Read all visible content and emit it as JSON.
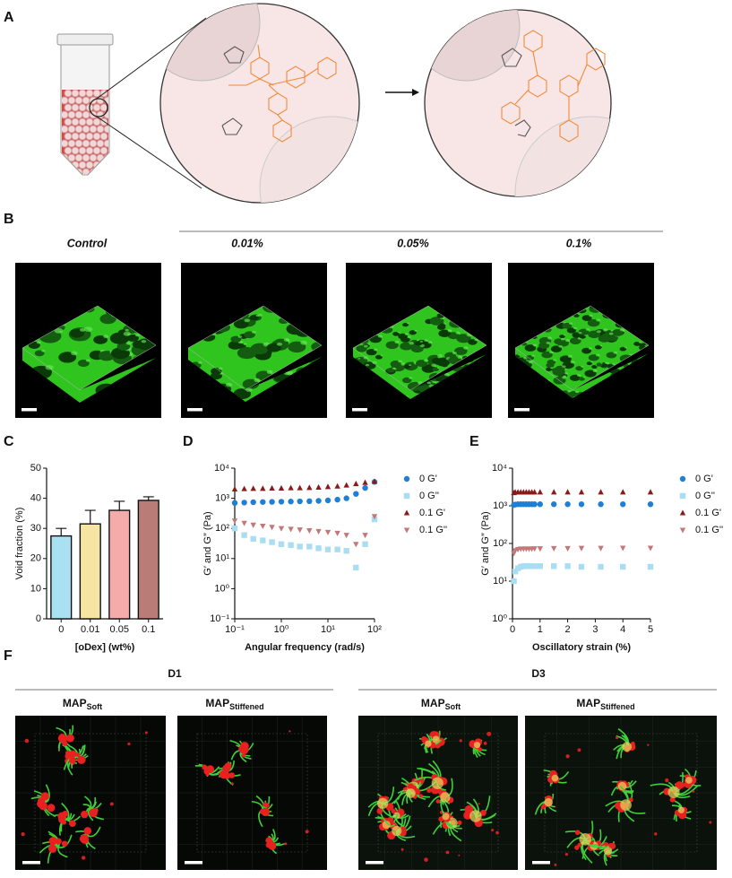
{
  "panel_labels": [
    "A",
    "B",
    "C",
    "D",
    "E",
    "F"
  ],
  "panel_b": {
    "columns": [
      "Control",
      "0.01%",
      "0.05%",
      "0.1%"
    ]
  },
  "panel_f": {
    "groups": [
      "D1",
      "D3"
    ],
    "columns": [
      {
        "main": "MAP",
        "sub": "Soft"
      },
      {
        "main": "MAP",
        "sub": "Stiffened"
      },
      {
        "main": "MAP",
        "sub": "Soft"
      },
      {
        "main": "MAP",
        "sub": "Stiffened"
      }
    ]
  },
  "chart_data": [
    {
      "type": "bar",
      "categories": [
        "0",
        "0.01",
        "0.05",
        "0.1"
      ],
      "values": [
        27.5,
        31.5,
        36,
        39.3
      ],
      "errors": [
        2.5,
        4.5,
        3,
        1.2
      ],
      "colors": [
        "#a9e0f2",
        "#f6e4a3",
        "#f6abab",
        "#b97c76"
      ],
      "xlabel": "[oDex] (wt%)",
      "ylabel": "Void fraction (%)",
      "ylim": [
        0,
        50
      ],
      "yticks": [
        0,
        10,
        20,
        30,
        40,
        50
      ]
    },
    {
      "type": "scatter",
      "xscale": "log",
      "yscale": "log",
      "xlabel": "Angular frequency (rad/s)",
      "ylabel": "G′ and G″ (Pa)",
      "xlim": [
        0.1,
        100
      ],
      "ylim": [
        0.1,
        10000
      ],
      "xticks": [
        {
          "value": 0.1,
          "label": "10⁻¹"
        },
        {
          "value": 1,
          "label": "10⁰"
        },
        {
          "value": 10,
          "label": "10¹"
        },
        {
          "value": 100,
          "label": "10²"
        }
      ],
      "yticks": [
        {
          "value": 0.1,
          "label": "10⁻¹"
        },
        {
          "value": 1,
          "label": "10⁰"
        },
        {
          "value": 10,
          "label": "10¹"
        },
        {
          "value": 100,
          "label": "10²"
        },
        {
          "value": 1000,
          "label": "10³"
        },
        {
          "value": 10000,
          "label": "10⁴"
        }
      ],
      "x": [
        0.1,
        0.16,
        0.25,
        0.4,
        0.63,
        1,
        1.6,
        2.5,
        4,
        6.3,
        10,
        16,
        25,
        40,
        63,
        100
      ],
      "series": [
        {
          "name": "0 G'",
          "color": "#1f7fd4",
          "marker": "circle",
          "values": [
            700,
            720,
            740,
            750,
            760,
            770,
            780,
            790,
            800,
            820,
            850,
            900,
            1000,
            1400,
            2200,
            3500
          ]
        },
        {
          "name": "0 G''",
          "color": "#a9def2",
          "marker": "square",
          "values": [
            100,
            60,
            45,
            40,
            35,
            30,
            28,
            25,
            25,
            22,
            20,
            20,
            18,
            5,
            30,
            200
          ]
        },
        {
          "name": "0.1 G'",
          "color": "#8b1a1a",
          "marker": "triangle-up",
          "values": [
            2000,
            2050,
            2100,
            2100,
            2150,
            2150,
            2200,
            2200,
            2250,
            2300,
            2400,
            2500,
            2700,
            3000,
            3300,
            3600
          ]
        },
        {
          "name": "0.1 G''",
          "color": "#c27878",
          "marker": "triangle-down",
          "values": [
            180,
            150,
            130,
            120,
            110,
            100,
            95,
            90,
            85,
            80,
            75,
            70,
            60,
            30,
            60,
            250
          ]
        }
      ]
    },
    {
      "type": "scatter",
      "xscale": "linear",
      "yscale": "log",
      "xlabel": "Oscillatory strain (%)",
      "ylabel": "G′ and G″ (Pa)",
      "xlim": [
        0,
        5
      ],
      "ylim": [
        1,
        10000
      ],
      "xticks": [
        0,
        1,
        2,
        3,
        4,
        5
      ],
      "yticks": [
        {
          "value": 1,
          "label": "10⁰"
        },
        {
          "value": 10,
          "label": "10¹"
        },
        {
          "value": 100,
          "label": "10²"
        },
        {
          "value": 1000,
          "label": "10³"
        },
        {
          "value": 10000,
          "label": "10⁴"
        }
      ],
      "x": [
        0.05,
        0.1,
        0.2,
        0.3,
        0.4,
        0.5,
        0.6,
        0.7,
        0.8,
        1,
        1.5,
        2,
        2.5,
        3.2,
        4,
        5
      ],
      "series": [
        {
          "name": "0 G'",
          "color": "#1f7fd4",
          "marker": "circle",
          "values": [
            1050,
            1080,
            1100,
            1100,
            1100,
            1100,
            1100,
            1100,
            1100,
            1100,
            1100,
            1100,
            1100,
            1100,
            1100,
            1100
          ]
        },
        {
          "name": "0 G''",
          "color": "#a9def2",
          "marker": "square",
          "values": [
            10,
            18,
            22,
            24,
            25,
            25,
            25,
            25,
            25,
            25,
            25,
            25,
            24,
            24,
            24,
            24
          ]
        },
        {
          "name": "0.1 G'",
          "color": "#8b1a1a",
          "marker": "triangle-up",
          "values": [
            2200,
            2300,
            2300,
            2300,
            2300,
            2300,
            2300,
            2300,
            2300,
            2300,
            2300,
            2300,
            2300,
            2300,
            2300,
            2300
          ]
        },
        {
          "name": "0.1 G''",
          "color": "#c27878",
          "marker": "triangle-down",
          "values": [
            55,
            65,
            70,
            72,
            72,
            72,
            72,
            72,
            73,
            73,
            74,
            74,
            75,
            75,
            76,
            76
          ]
        }
      ]
    }
  ]
}
